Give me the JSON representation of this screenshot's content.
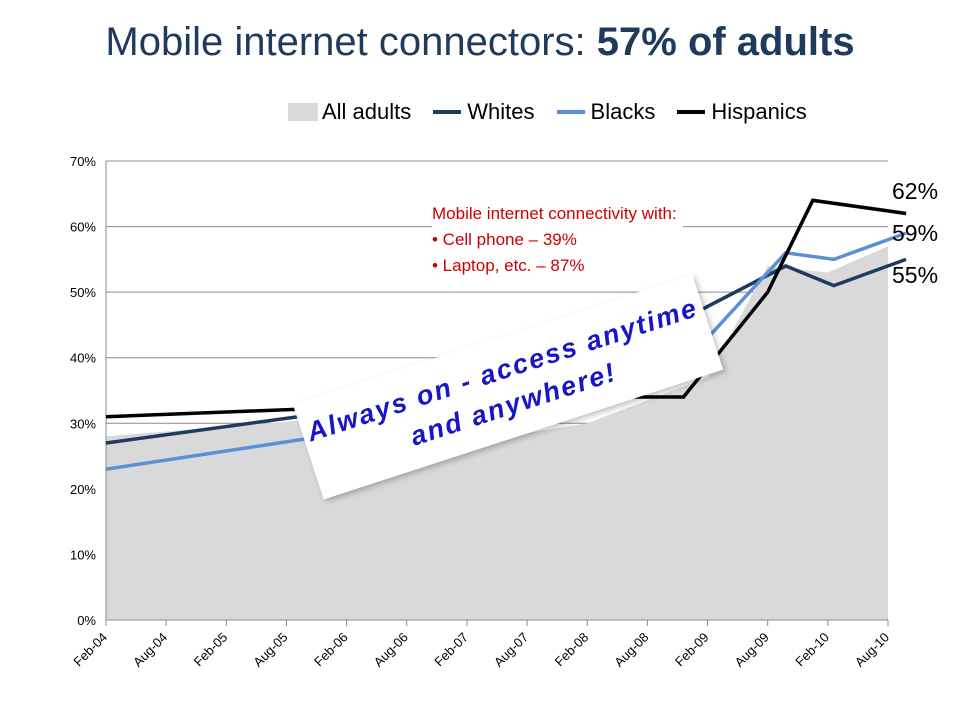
{
  "title": {
    "prefix": "Mobile internet connectors: ",
    "emphasis": "57% of adults"
  },
  "annotation": {
    "heading": "Mobile internet connectivity with:",
    "bullets": [
      "• Cell phone – 39%",
      "• Laptop, etc. – 87%"
    ]
  },
  "callout": {
    "line1": "Always on - access anytime",
    "line2": "and anywhere!"
  },
  "end_labels": [
    "62%",
    "59%",
    "55%"
  ],
  "colors": {
    "all_adults": "#d9d9d9",
    "whites": "#1f3a5f",
    "blacks": "#5b8fd6",
    "hispanics": "#000000"
  },
  "chart_data": {
    "type": "line",
    "categories": [
      "Feb-04",
      "Aug-04",
      "Feb-05",
      "Aug-05",
      "Feb-06",
      "Aug-06",
      "Feb-07",
      "Aug-07",
      "Feb-08",
      "Aug-08",
      "Feb-09",
      "Aug-09",
      "Feb-10",
      "Aug-10"
    ],
    "y_ticks": [
      "0%",
      "10%",
      "20%",
      "30%",
      "40%",
      "50%",
      "60%",
      "70%"
    ],
    "ylim": [
      0,
      70
    ],
    "grid": "horizontal",
    "legend_position": "top",
    "series": [
      {
        "name": "All adults",
        "kind": "area",
        "points": [
          [
            0,
            28
          ],
          [
            4,
            31
          ],
          [
            6,
            27
          ],
          [
            8,
            30
          ],
          [
            10,
            37
          ],
          [
            11,
            54
          ],
          [
            12,
            53
          ],
          [
            13,
            57
          ]
        ]
      },
      {
        "name": "Whites",
        "kind": "line",
        "points": [
          [
            0,
            27
          ],
          [
            4,
            32
          ],
          [
            9.2,
            44
          ],
          [
            11.3,
            54
          ],
          [
            12.1,
            51
          ],
          [
            13.3,
            55
          ]
        ]
      },
      {
        "name": "Blacks",
        "kind": "line",
        "points": [
          [
            0,
            23
          ],
          [
            3.6,
            28
          ],
          [
            9.5,
            38
          ],
          [
            11.3,
            56
          ],
          [
            12.1,
            55
          ],
          [
            13.3,
            59
          ]
        ]
      },
      {
        "name": "Hispanics",
        "kind": "line",
        "points": [
          [
            0,
            31
          ],
          [
            4.2,
            32.5
          ],
          [
            8.6,
            34
          ],
          [
            9.6,
            34
          ],
          [
            11,
            50
          ],
          [
            11.75,
            64
          ],
          [
            13.3,
            62
          ]
        ]
      }
    ]
  }
}
